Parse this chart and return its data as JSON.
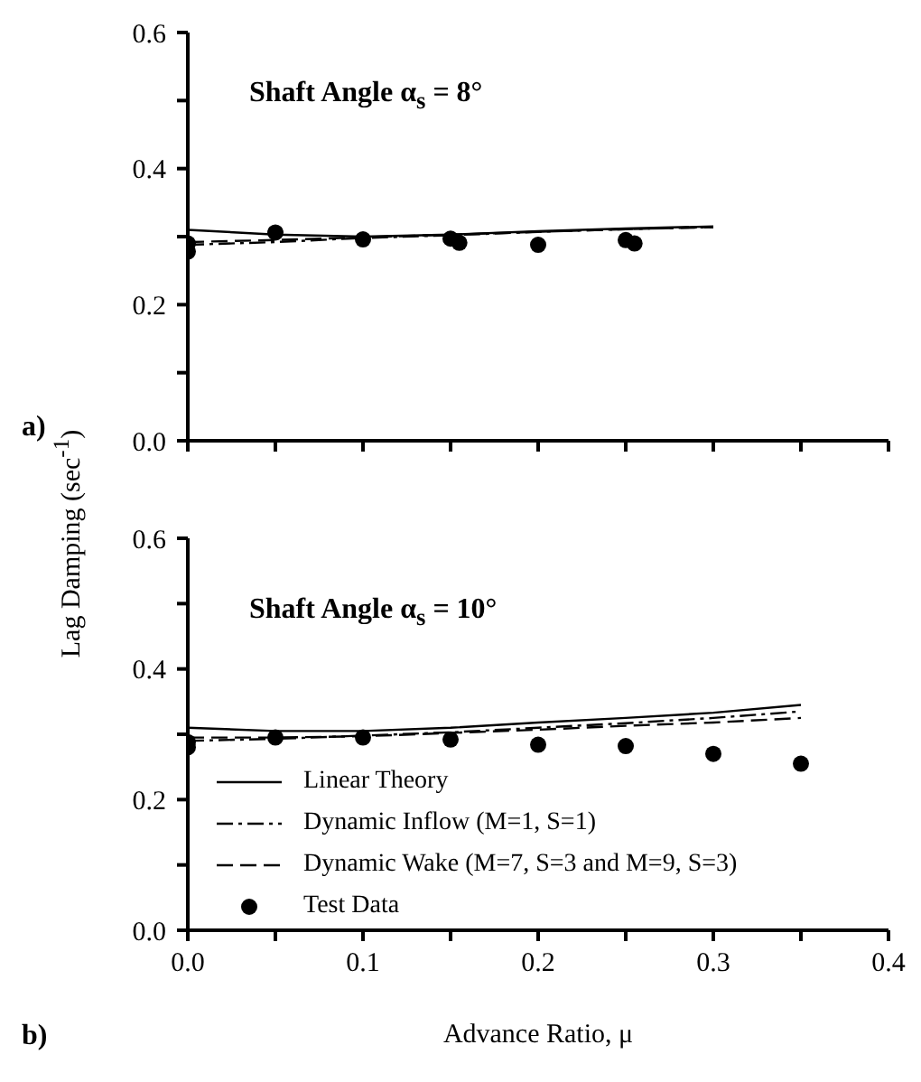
{
  "chart_data": [
    {
      "type": "line",
      "ylabel": "Lag Damping (sec$^{-1}$)",
      "annotations": [
        "Shaft Angle α$_{s}$ = 8°",
        "a)"
      ],
      "xlim": [
        0,
        0.4
      ],
      "xticks": [
        {
          "value": 0,
          "label": null
        },
        {
          "value": 0.05,
          "label": null
        },
        {
          "value": 0.1,
          "label": null
        },
        {
          "value": 0.15,
          "label": null
        },
        {
          "value": 0.2,
          "label": null
        },
        {
          "value": 0.25,
          "label": null
        },
        {
          "value": 0.3,
          "label": null
        },
        {
          "value": 0.35,
          "label": null
        },
        {
          "value": 0.4,
          "label": null
        }
      ],
      "ylim": [
        0,
        0.6
      ],
      "yticks": [
        {
          "value": 0,
          "label": "0.0"
        },
        {
          "value": 0.1,
          "label": null
        },
        0.2,
        {
          "value": 0.3,
          "label": null
        },
        0.4,
        {
          "value": 0.5,
          "label": null
        },
        0.6
      ],
      "tick_labels": "y",
      "grid": false,
      "legend": false,
      "series": [
        {
          "color": "#000000",
          "line_style": "solid",
          "marker": "none",
          "x": [
            0,
            0.05,
            0.1,
            0.15,
            0.2,
            0.25,
            0.3
          ],
          "values": [
            0.31,
            0.303,
            0.3,
            0.303,
            0.308,
            0.312,
            0.315
          ]
        },
        {
          "color": "#000000",
          "line_style": "dotted",
          "marker": "none",
          "x": [
            0,
            0.05,
            0.1,
            0.15,
            0.2,
            0.25,
            0.3
          ],
          "values": [
            0.288,
            0.292,
            0.298,
            0.302,
            0.307,
            0.311,
            0.314
          ]
        },
        {
          "color": "#000000",
          "line_style": "dashed",
          "marker": "none",
          "x": [
            0,
            0.05,
            0.1,
            0.15,
            0.2,
            0.25,
            0.3
          ],
          "values": [
            0.292,
            0.295,
            0.299,
            0.303,
            0.307,
            0.311,
            0.314
          ]
        },
        {
          "type": "scatter",
          "color": "#000000",
          "marker": "circle",
          "x": [
            0,
            0,
            0.05,
            0.1,
            0.15,
            0.155,
            0.2,
            0.25,
            0.255
          ],
          "values": [
            0.29,
            0.278,
            0.306,
            0.296,
            0.297,
            0.291,
            0.288,
            0.295,
            0.29
          ]
        }
      ]
    },
    {
      "type": "line",
      "xlabel": "Advance Ratio, μ",
      "annotations": [
        "Shaft Angle α$_{s}$ = 10°",
        "b)"
      ],
      "xlim": [
        0,
        0.4
      ],
      "xticks": [
        {
          "value": 0,
          "label": "0.0"
        },
        {
          "value": 0.05,
          "label": null
        },
        0.1,
        {
          "value": 0.15,
          "label": null
        },
        0.2,
        {
          "value": 0.25,
          "label": null
        },
        0.3,
        {
          "value": 0.35,
          "label": null
        },
        0.4
      ],
      "ylim": [
        0,
        0.6
      ],
      "yticks": [
        {
          "value": 0,
          "label": "0.0"
        },
        {
          "value": 0.1,
          "label": null
        },
        0.2,
        {
          "value": 0.3,
          "label": null
        },
        0.4,
        {
          "value": 0.5,
          "label": null
        },
        0.6
      ],
      "grid": false,
      "legend": "bottom left",
      "series": [
        {
          "name": "Linear Theory",
          "color": "#000000",
          "line_style": "solid",
          "marker": "none",
          "x": [
            0,
            0.05,
            0.1,
            0.15,
            0.2,
            0.25,
            0.3,
            0.35
          ],
          "values": [
            0.31,
            0.305,
            0.305,
            0.31,
            0.318,
            0.325,
            0.333,
            0.345
          ]
        },
        {
          "name": "Dynamic Inflow (M=1, S=1)",
          "color": "#000000",
          "line_style": "dotted",
          "marker": "none",
          "x": [
            0,
            0.05,
            0.1,
            0.15,
            0.2,
            0.25,
            0.3,
            0.35
          ],
          "values": [
            0.29,
            0.293,
            0.298,
            0.303,
            0.31,
            0.317,
            0.325,
            0.335
          ]
        },
        {
          "name": "Dynamic Wake (M=7, S=3 and M=9, S=3)",
          "color": "#000000",
          "line_style": "dashed",
          "marker": "none",
          "x": [
            0,
            0.05,
            0.1,
            0.15,
            0.2,
            0.25,
            0.3,
            0.35
          ],
          "values": [
            0.295,
            0.295,
            0.297,
            0.302,
            0.307,
            0.313,
            0.318,
            0.325
          ]
        },
        {
          "name": "Test Data",
          "type": "scatter",
          "color": "#000000",
          "marker": "circle",
          "x": [
            0,
            0,
            0.05,
            0.1,
            0.15,
            0.2,
            0.25,
            0.3,
            0.35
          ],
          "values": [
            0.288,
            0.28,
            0.295,
            0.295,
            0.292,
            0.284,
            0.282,
            0.27,
            0.255
          ]
        }
      ]
    }
  ]
}
